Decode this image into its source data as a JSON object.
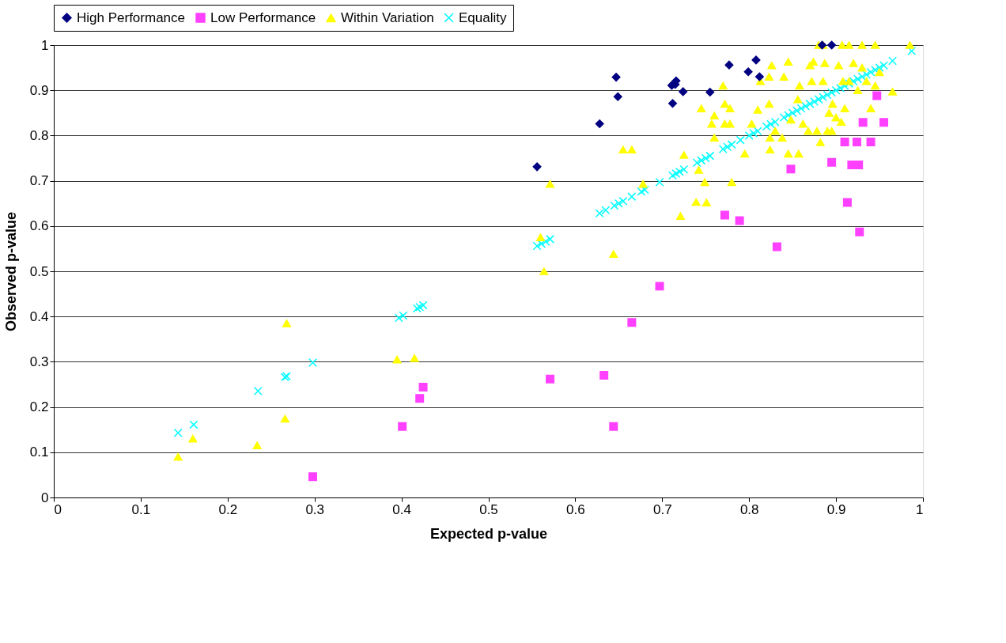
{
  "chart_data": {
    "type": "scatter",
    "xlabel": "Expected p-value",
    "ylabel": "Observed p-value",
    "xlim": [
      0,
      1
    ],
    "ylim": [
      0,
      1
    ],
    "xticks": [
      0,
      0.1,
      0.2,
      0.3,
      0.4,
      0.5,
      0.6,
      0.7,
      0.8,
      0.9,
      1
    ],
    "yticks": [
      0,
      0.1,
      0.2,
      0.3,
      0.4,
      0.5,
      0.6,
      0.7,
      0.8,
      0.9,
      1
    ],
    "grid": "y",
    "legend": "top",
    "series": [
      {
        "name": "High Performance",
        "color": "#000080",
        "marker": "diamond",
        "x": [
          0.556,
          0.628,
          0.647,
          0.649,
          0.711,
          0.712,
          0.716,
          0.715,
          0.724,
          0.755,
          0.777,
          0.799,
          0.808,
          0.812,
          0.895,
          0.884
        ],
        "values": [
          0.731,
          0.826,
          0.929,
          0.886,
          0.911,
          0.871,
          0.921,
          0.913,
          0.897,
          0.896,
          0.956,
          0.941,
          0.967,
          0.93,
          1.0,
          1.0
        ]
      },
      {
        "name": "Low Performance",
        "color": "#ff40ff",
        "marker": "square",
        "x": [
          0.298,
          0.401,
          0.421,
          0.425,
          0.571,
          0.633,
          0.644,
          0.665,
          0.697,
          0.772,
          0.789,
          0.832,
          0.848,
          0.895,
          0.91,
          0.913,
          0.918,
          0.924,
          0.926,
          0.927,
          0.931,
          0.94,
          0.947,
          0.955
        ],
        "values": [
          0.046,
          0.157,
          0.219,
          0.244,
          0.262,
          0.27,
          0.157,
          0.387,
          0.467,
          0.624,
          0.612,
          0.554,
          0.726,
          0.741,
          0.786,
          0.652,
          0.735,
          0.786,
          0.735,
          0.587,
          0.829,
          0.786,
          0.888,
          0.829
        ]
      },
      {
        "name": "Within Variation",
        "color": "#ffff00",
        "marker": "triangle",
        "x": [
          0.143,
          0.16,
          0.234,
          0.266,
          0.268,
          0.395,
          0.415,
          0.56,
          0.564,
          0.571,
          0.644,
          0.655,
          0.665,
          0.678,
          0.721,
          0.725,
          0.739,
          0.742,
          0.745,
          0.749,
          0.751,
          0.757,
          0.76,
          0.76,
          0.77,
          0.772,
          0.772,
          0.778,
          0.778,
          0.78,
          0.795,
          0.803,
          0.81,
          0.813,
          0.823,
          0.823,
          0.824,
          0.824,
          0.826,
          0.83,
          0.838,
          0.84,
          0.845,
          0.845,
          0.848,
          0.856,
          0.857,
          0.858,
          0.862,
          0.868,
          0.87,
          0.872,
          0.874,
          0.878,
          0.882,
          0.885,
          0.887,
          0.89,
          0.892,
          0.896,
          0.9,
          0.903,
          0.906,
          0.908,
          0.91,
          0.915,
          0.92,
          0.925,
          0.93,
          0.935,
          0.94,
          0.945,
          0.95,
          0.965,
          0.985,
          0.88,
          0.885,
          0.907,
          0.915,
          0.93,
          0.945,
          0.895
        ],
        "values": [
          0.09,
          0.13,
          0.115,
          0.174,
          0.385,
          0.305,
          0.308,
          0.575,
          0.5,
          0.693,
          0.538,
          0.769,
          0.769,
          0.693,
          0.622,
          0.757,
          0.653,
          0.724,
          0.86,
          0.697,
          0.652,
          0.826,
          0.844,
          0.795,
          0.91,
          0.87,
          0.826,
          0.826,
          0.86,
          0.697,
          0.76,
          0.826,
          0.857,
          0.92,
          0.93,
          0.87,
          0.769,
          0.795,
          0.955,
          0.81,
          0.795,
          0.93,
          0.963,
          0.76,
          0.835,
          0.88,
          0.76,
          0.91,
          0.826,
          0.81,
          0.955,
          0.92,
          0.963,
          0.81,
          0.785,
          0.92,
          0.96,
          0.81,
          0.85,
          0.87,
          0.84,
          0.955,
          0.83,
          0.92,
          0.86,
          0.92,
          0.96,
          0.9,
          0.95,
          0.92,
          0.86,
          0.91,
          0.94,
          0.897,
          1.0,
          1.0,
          1.0,
          1.0,
          1.0,
          1.0,
          1.0,
          0.81
        ]
      },
      {
        "name": "Equality",
        "color": "#00ffff",
        "marker": "cross",
        "x": [
          0.143,
          0.161,
          0.235,
          0.266,
          0.268,
          0.298,
          0.397,
          0.402,
          0.418,
          0.421,
          0.425,
          0.556,
          0.561,
          0.566,
          0.571,
          0.628,
          0.635,
          0.645,
          0.65,
          0.655,
          0.665,
          0.676,
          0.68,
          0.697,
          0.712,
          0.716,
          0.72,
          0.725,
          0.74,
          0.745,
          0.75,
          0.755,
          0.77,
          0.775,
          0.78,
          0.79,
          0.8,
          0.805,
          0.81,
          0.82,
          0.825,
          0.83,
          0.84,
          0.845,
          0.85,
          0.855,
          0.86,
          0.865,
          0.87,
          0.875,
          0.88,
          0.885,
          0.89,
          0.895,
          0.9,
          0.905,
          0.91,
          0.915,
          0.92,
          0.925,
          0.93,
          0.935,
          0.94,
          0.945,
          0.95,
          0.955,
          0.965,
          0.987
        ],
        "values": [
          0.143,
          0.161,
          0.235,
          0.266,
          0.268,
          0.298,
          0.397,
          0.402,
          0.418,
          0.421,
          0.425,
          0.556,
          0.561,
          0.566,
          0.571,
          0.628,
          0.635,
          0.645,
          0.65,
          0.655,
          0.665,
          0.676,
          0.68,
          0.697,
          0.712,
          0.716,
          0.72,
          0.725,
          0.74,
          0.745,
          0.75,
          0.755,
          0.77,
          0.775,
          0.78,
          0.79,
          0.8,
          0.805,
          0.81,
          0.82,
          0.825,
          0.83,
          0.84,
          0.845,
          0.85,
          0.855,
          0.86,
          0.865,
          0.87,
          0.875,
          0.88,
          0.885,
          0.89,
          0.895,
          0.9,
          0.905,
          0.91,
          0.915,
          0.92,
          0.925,
          0.93,
          0.935,
          0.94,
          0.945,
          0.95,
          0.955,
          0.965,
          0.987
        ]
      }
    ]
  }
}
